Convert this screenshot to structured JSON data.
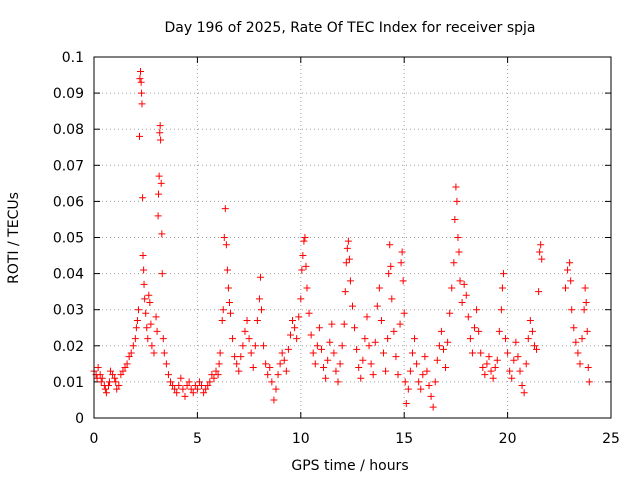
{
  "chart_data": {
    "type": "scatter",
    "title": "Day 196 of 2025, Rate Of TEC Index for receiver spja",
    "xlabel": "GPS time / hours",
    "ylabel": "ROTI / TECUs",
    "xlim": [
      0,
      25
    ],
    "ylim": [
      0,
      0.1
    ],
    "xticks": [
      0,
      5,
      10,
      15,
      20,
      25
    ],
    "xtick_labels": [
      "0",
      "5",
      "10",
      "15",
      "20",
      "25"
    ],
    "yticks": [
      0,
      0.01,
      0.02,
      0.03,
      0.04,
      0.05,
      0.06,
      0.07,
      0.08,
      0.09,
      0.1
    ],
    "ytick_labels": [
      "0",
      "0.01",
      "0.02",
      "0.03",
      "0.04",
      "0.05",
      "0.06",
      "0.07",
      "0.08",
      "0.09",
      "0.1"
    ],
    "grid": true,
    "marker": "+",
    "color": "#ff0000",
    "series": [
      {
        "name": "ROTI",
        "points": [
          [
            0.0,
            0.013
          ],
          [
            0.1,
            0.012
          ],
          [
            0.15,
            0.011
          ],
          [
            0.2,
            0.014
          ],
          [
            0.3,
            0.012
          ],
          [
            0.35,
            0.01
          ],
          [
            0.4,
            0.011
          ],
          [
            0.5,
            0.009
          ],
          [
            0.55,
            0.008
          ],
          [
            0.6,
            0.007
          ],
          [
            0.7,
            0.009
          ],
          [
            0.75,
            0.01
          ],
          [
            0.8,
            0.013
          ],
          [
            0.9,
            0.012
          ],
          [
            1.0,
            0.011
          ],
          [
            1.05,
            0.01
          ],
          [
            1.1,
            0.008
          ],
          [
            1.2,
            0.009
          ],
          [
            1.3,
            0.012
          ],
          [
            1.4,
            0.013
          ],
          [
            1.5,
            0.014
          ],
          [
            1.6,
            0.015
          ],
          [
            1.7,
            0.017
          ],
          [
            1.8,
            0.018
          ],
          [
            1.9,
            0.02
          ],
          [
            2.0,
            0.022
          ],
          [
            2.05,
            0.025
          ],
          [
            2.1,
            0.027
          ],
          [
            2.15,
            0.03
          ],
          [
            2.2,
            0.078
          ],
          [
            2.22,
            0.094
          ],
          [
            2.25,
            0.096
          ],
          [
            2.28,
            0.093
          ],
          [
            2.3,
            0.09
          ],
          [
            2.32,
            0.087
          ],
          [
            2.35,
            0.061
          ],
          [
            2.37,
            0.045
          ],
          [
            2.4,
            0.041
          ],
          [
            2.42,
            0.037
          ],
          [
            2.45,
            0.033
          ],
          [
            2.5,
            0.029
          ],
          [
            2.55,
            0.025
          ],
          [
            2.6,
            0.022
          ],
          [
            2.65,
            0.034
          ],
          [
            2.7,
            0.032
          ],
          [
            2.75,
            0.026
          ],
          [
            2.8,
            0.02
          ],
          [
            2.9,
            0.018
          ],
          [
            3.0,
            0.028
          ],
          [
            3.05,
            0.024
          ],
          [
            3.1,
            0.056
          ],
          [
            3.12,
            0.062
          ],
          [
            3.15,
            0.067
          ],
          [
            3.18,
            0.079
          ],
          [
            3.2,
            0.081
          ],
          [
            3.22,
            0.077
          ],
          [
            3.25,
            0.065
          ],
          [
            3.28,
            0.051
          ],
          [
            3.3,
            0.04
          ],
          [
            3.35,
            0.022
          ],
          [
            3.4,
            0.018
          ],
          [
            3.5,
            0.015
          ],
          [
            3.6,
            0.012
          ],
          [
            3.7,
            0.01
          ],
          [
            3.8,
            0.009
          ],
          [
            3.9,
            0.008
          ],
          [
            4.0,
            0.007
          ],
          [
            4.1,
            0.009
          ],
          [
            4.2,
            0.011
          ],
          [
            4.3,
            0.008
          ],
          [
            4.4,
            0.006
          ],
          [
            4.5,
            0.009
          ],
          [
            4.6,
            0.01
          ],
          [
            4.7,
            0.008
          ],
          [
            4.8,
            0.007
          ],
          [
            4.9,
            0.009
          ],
          [
            5.0,
            0.008
          ],
          [
            5.1,
            0.01
          ],
          [
            5.2,
            0.009
          ],
          [
            5.3,
            0.007
          ],
          [
            5.4,
            0.008
          ],
          [
            5.5,
            0.009
          ],
          [
            5.6,
            0.01
          ],
          [
            5.7,
            0.012
          ],
          [
            5.8,
            0.011
          ],
          [
            5.9,
            0.013
          ],
          [
            6.0,
            0.012
          ],
          [
            6.05,
            0.015
          ],
          [
            6.1,
            0.018
          ],
          [
            6.2,
            0.027
          ],
          [
            6.25,
            0.03
          ],
          [
            6.3,
            0.05
          ],
          [
            6.35,
            0.058
          ],
          [
            6.4,
            0.048
          ],
          [
            6.45,
            0.041
          ],
          [
            6.5,
            0.036
          ],
          [
            6.55,
            0.032
          ],
          [
            6.6,
            0.029
          ],
          [
            6.7,
            0.022
          ],
          [
            6.8,
            0.017
          ],
          [
            6.9,
            0.015
          ],
          [
            7.0,
            0.013
          ],
          [
            7.1,
            0.017
          ],
          [
            7.2,
            0.02
          ],
          [
            7.3,
            0.024
          ],
          [
            7.4,
            0.027
          ],
          [
            7.5,
            0.022
          ],
          [
            7.6,
            0.018
          ],
          [
            7.7,
            0.014
          ],
          [
            7.8,
            0.02
          ],
          [
            7.9,
            0.027
          ],
          [
            8.0,
            0.033
          ],
          [
            8.05,
            0.039
          ],
          [
            8.1,
            0.03
          ],
          [
            8.2,
            0.02
          ],
          [
            8.3,
            0.015
          ],
          [
            8.4,
            0.012
          ],
          [
            8.5,
            0.014
          ],
          [
            8.6,
            0.01
          ],
          [
            8.7,
            0.005
          ],
          [
            8.8,
            0.008
          ],
          [
            8.9,
            0.012
          ],
          [
            9.0,
            0.015
          ],
          [
            9.1,
            0.018
          ],
          [
            9.2,
            0.016
          ],
          [
            9.3,
            0.013
          ],
          [
            9.4,
            0.019
          ],
          [
            9.5,
            0.023
          ],
          [
            9.6,
            0.027
          ],
          [
            9.7,
            0.025
          ],
          [
            9.8,
            0.022
          ],
          [
            9.9,
            0.028
          ],
          [
            10.0,
            0.033
          ],
          [
            10.05,
            0.041
          ],
          [
            10.1,
            0.045
          ],
          [
            10.15,
            0.049
          ],
          [
            10.2,
            0.05
          ],
          [
            10.25,
            0.042
          ],
          [
            10.3,
            0.036
          ],
          [
            10.4,
            0.029
          ],
          [
            10.5,
            0.023
          ],
          [
            10.6,
            0.018
          ],
          [
            10.7,
            0.015
          ],
          [
            10.8,
            0.02
          ],
          [
            10.9,
            0.025
          ],
          [
            11.0,
            0.019
          ],
          [
            11.1,
            0.014
          ],
          [
            11.2,
            0.011
          ],
          [
            11.3,
            0.016
          ],
          [
            11.4,
            0.021
          ],
          [
            11.5,
            0.026
          ],
          [
            11.6,
            0.018
          ],
          [
            11.7,
            0.013
          ],
          [
            11.8,
            0.01
          ],
          [
            11.9,
            0.015
          ],
          [
            12.0,
            0.02
          ],
          [
            12.1,
            0.026
          ],
          [
            12.15,
            0.035
          ],
          [
            12.2,
            0.043
          ],
          [
            12.25,
            0.047
          ],
          [
            12.3,
            0.049
          ],
          [
            12.35,
            0.044
          ],
          [
            12.4,
            0.038
          ],
          [
            12.5,
            0.031
          ],
          [
            12.6,
            0.025
          ],
          [
            12.7,
            0.019
          ],
          [
            12.8,
            0.014
          ],
          [
            12.9,
            0.011
          ],
          [
            13.0,
            0.016
          ],
          [
            13.1,
            0.022
          ],
          [
            13.2,
            0.028
          ],
          [
            13.3,
            0.02
          ],
          [
            13.4,
            0.015
          ],
          [
            13.5,
            0.012
          ],
          [
            13.6,
            0.021
          ],
          [
            13.7,
            0.031
          ],
          [
            13.8,
            0.036
          ],
          [
            13.9,
            0.027
          ],
          [
            14.0,
            0.018
          ],
          [
            14.1,
            0.013
          ],
          [
            14.2,
            0.022
          ],
          [
            14.25,
            0.04
          ],
          [
            14.3,
            0.048
          ],
          [
            14.35,
            0.042
          ],
          [
            14.4,
            0.033
          ],
          [
            14.5,
            0.024
          ],
          [
            14.6,
            0.017
          ],
          [
            14.7,
            0.012
          ],
          [
            14.8,
            0.026
          ],
          [
            14.85,
            0.043
          ],
          [
            14.9,
            0.046
          ],
          [
            14.95,
            0.038
          ],
          [
            15.0,
            0.029
          ],
          [
            15.05,
            0.01
          ],
          [
            15.1,
            0.004
          ],
          [
            15.2,
            0.008
          ],
          [
            15.3,
            0.013
          ],
          [
            15.4,
            0.018
          ],
          [
            15.5,
            0.022
          ],
          [
            15.6,
            0.015
          ],
          [
            15.7,
            0.01
          ],
          [
            15.8,
            0.008
          ],
          [
            15.9,
            0.012
          ],
          [
            16.0,
            0.017
          ],
          [
            16.1,
            0.013
          ],
          [
            16.2,
            0.009
          ],
          [
            16.3,
            0.006
          ],
          [
            16.4,
            0.003
          ],
          [
            16.5,
            0.01
          ],
          [
            16.6,
            0.016
          ],
          [
            16.7,
            0.02
          ],
          [
            16.8,
            0.024
          ],
          [
            16.9,
            0.019
          ],
          [
            17.0,
            0.014
          ],
          [
            17.1,
            0.021
          ],
          [
            17.2,
            0.029
          ],
          [
            17.3,
            0.036
          ],
          [
            17.4,
            0.043
          ],
          [
            17.45,
            0.055
          ],
          [
            17.5,
            0.064
          ],
          [
            17.55,
            0.06
          ],
          [
            17.6,
            0.05
          ],
          [
            17.65,
            0.046
          ],
          [
            17.7,
            0.038
          ],
          [
            17.8,
            0.032
          ],
          [
            17.9,
            0.037
          ],
          [
            18.0,
            0.034
          ],
          [
            18.1,
            0.028
          ],
          [
            18.2,
            0.022
          ],
          [
            18.3,
            0.018
          ],
          [
            18.4,
            0.025
          ],
          [
            18.5,
            0.03
          ],
          [
            18.6,
            0.024
          ],
          [
            18.7,
            0.018
          ],
          [
            18.8,
            0.014
          ],
          [
            18.9,
            0.012
          ],
          [
            19.0,
            0.015
          ],
          [
            19.1,
            0.017
          ],
          [
            19.2,
            0.013
          ],
          [
            19.3,
            0.011
          ],
          [
            19.4,
            0.014
          ],
          [
            19.5,
            0.016
          ],
          [
            19.6,
            0.024
          ],
          [
            19.7,
            0.03
          ],
          [
            19.75,
            0.036
          ],
          [
            19.8,
            0.04
          ],
          [
            19.9,
            0.022
          ],
          [
            20.0,
            0.018
          ],
          [
            20.1,
            0.013
          ],
          [
            20.2,
            0.011
          ],
          [
            20.3,
            0.016
          ],
          [
            20.4,
            0.021
          ],
          [
            20.5,
            0.017
          ],
          [
            20.6,
            0.013
          ],
          [
            20.7,
            0.009
          ],
          [
            20.8,
            0.007
          ],
          [
            20.9,
            0.015
          ],
          [
            21.0,
            0.022
          ],
          [
            21.1,
            0.027
          ],
          [
            21.2,
            0.024
          ],
          [
            21.3,
            0.02
          ],
          [
            21.4,
            0.019
          ],
          [
            21.5,
            0.035
          ],
          [
            21.55,
            0.046
          ],
          [
            21.6,
            0.048
          ],
          [
            21.65,
            0.044
          ],
          [
            22.8,
            0.036
          ],
          [
            22.9,
            0.041
          ],
          [
            23.0,
            0.043
          ],
          [
            23.05,
            0.038
          ],
          [
            23.1,
            0.03
          ],
          [
            23.2,
            0.025
          ],
          [
            23.3,
            0.021
          ],
          [
            23.4,
            0.018
          ],
          [
            23.5,
            0.015
          ],
          [
            23.6,
            0.022
          ],
          [
            23.7,
            0.03
          ],
          [
            23.75,
            0.036
          ],
          [
            23.8,
            0.032
          ],
          [
            23.85,
            0.024
          ],
          [
            23.9,
            0.014
          ],
          [
            23.95,
            0.01
          ]
        ]
      }
    ]
  }
}
